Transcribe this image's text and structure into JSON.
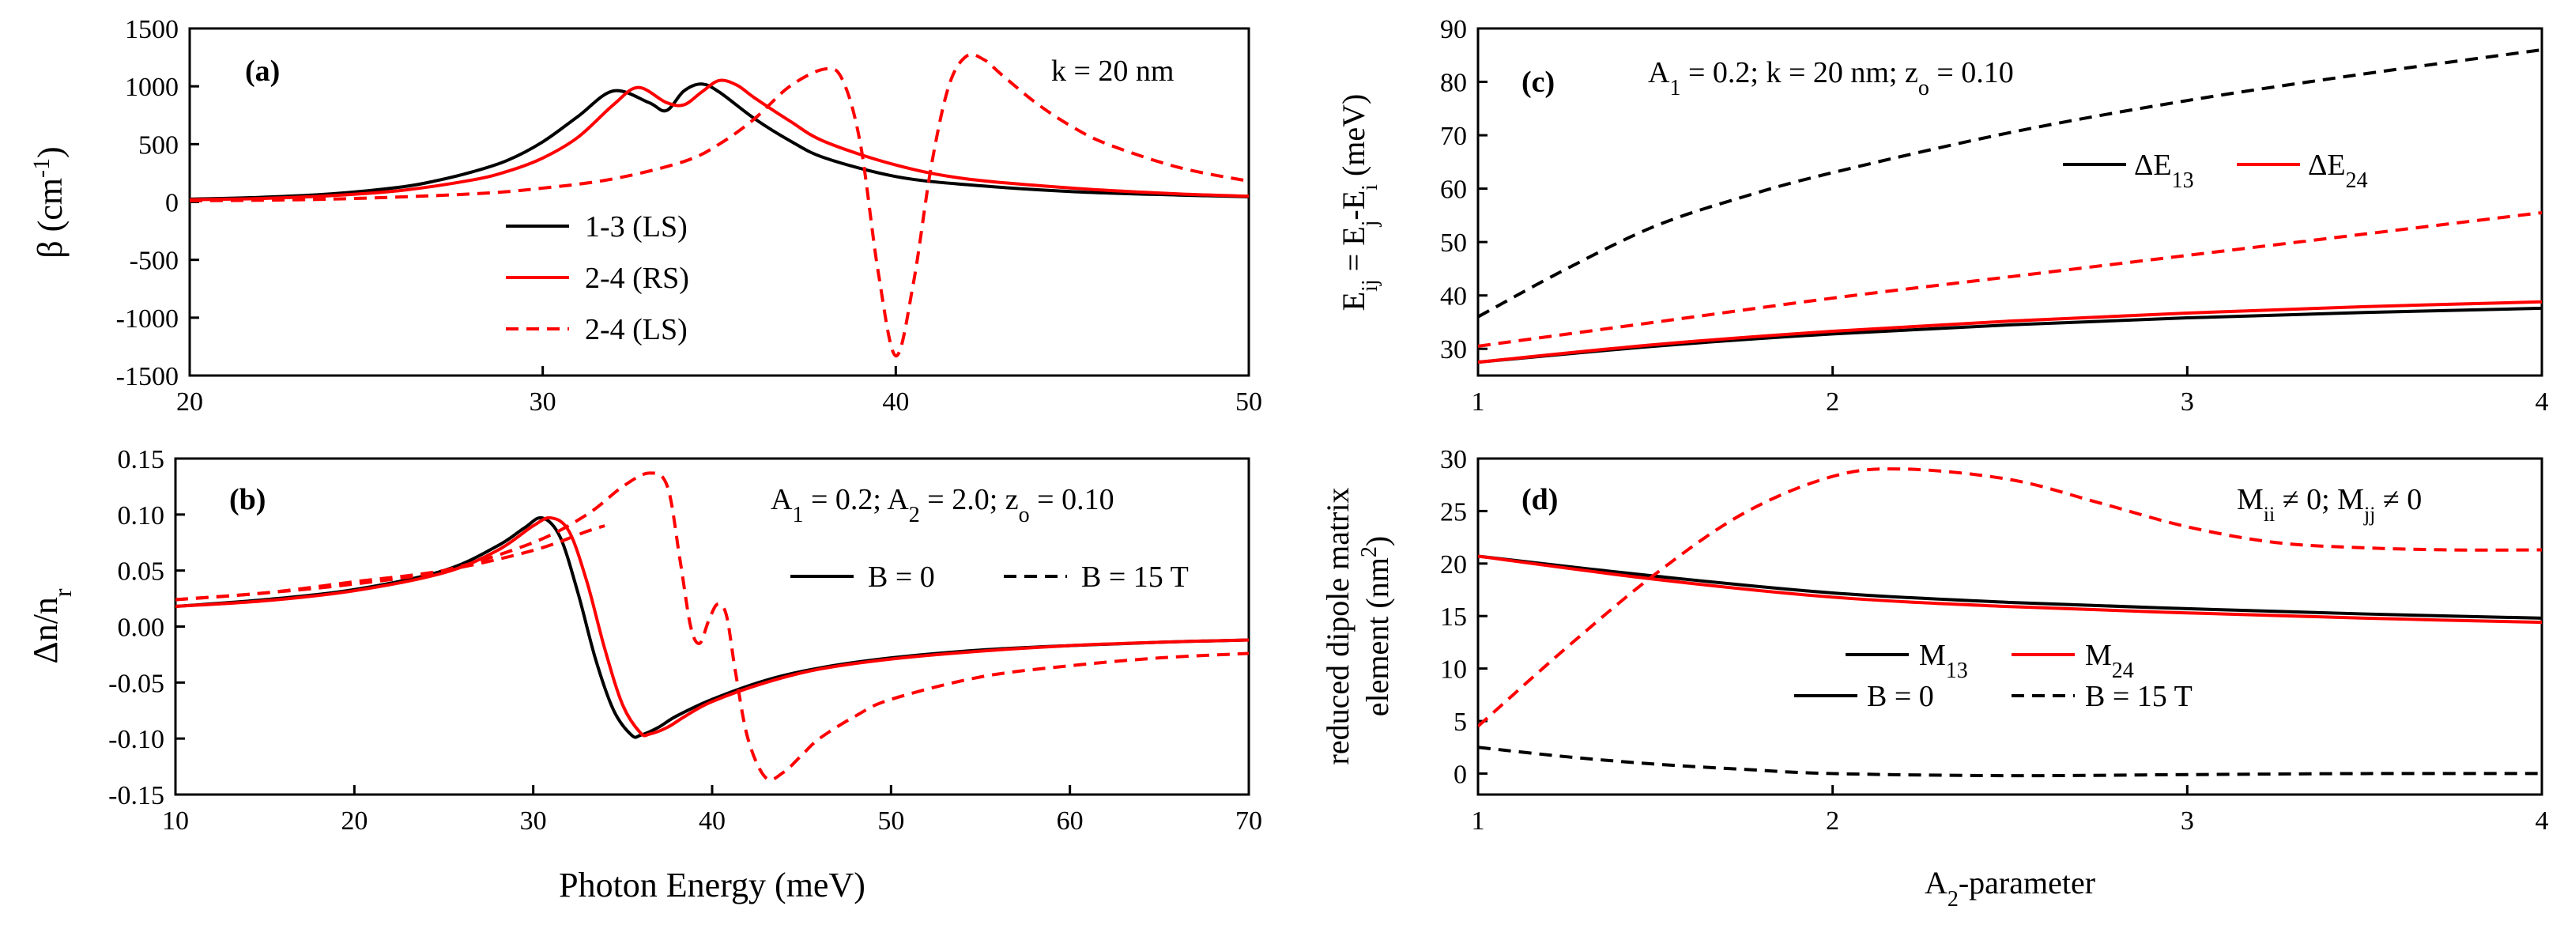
{
  "colors": {
    "black": "#000000",
    "red": "#ff0000",
    "background": "#ffffff"
  },
  "chart_data": [
    {
      "id": "a",
      "type": "line",
      "panel_label": "(a)",
      "annotation": "k = 20 nm",
      "ylabel": "β (cm⁻¹)",
      "xlabel": "",
      "xlim": [
        20,
        50
      ],
      "ylim": [
        -1500,
        1500
      ],
      "x_ticks": [
        20,
        30,
        40,
        50
      ],
      "y_ticks": [
        -1500,
        -1000,
        -500,
        0,
        500,
        1000,
        1500
      ],
      "legend_position": "center-left",
      "series": [
        {
          "name": "1-3 (LS)",
          "color": "#000000",
          "dash": "solid",
          "x": [
            20,
            22,
            24,
            26,
            27,
            28,
            29,
            30,
            31,
            32,
            33,
            33.5,
            34,
            34.5,
            35,
            36,
            37,
            38,
            40,
            42,
            45,
            48,
            50
          ],
          "y": [
            25,
            40,
            70,
            130,
            185,
            260,
            360,
            520,
            740,
            960,
            860,
            790,
            960,
            1020,
            950,
            720,
            530,
            380,
            220,
            150,
            90,
            60,
            45
          ]
        },
        {
          "name": "2-4 (RS)",
          "color": "#ff0000",
          "dash": "solid",
          "x": [
            20,
            22,
            24,
            26,
            28,
            29,
            30,
            31,
            32,
            32.7,
            33.5,
            34,
            34.5,
            35,
            35.5,
            36,
            37,
            38,
            40,
            42,
            45,
            48,
            50
          ],
          "y": [
            20,
            30,
            55,
            100,
            190,
            265,
            380,
            560,
            840,
            990,
            860,
            840,
            950,
            1050,
            1010,
            900,
            700,
            520,
            320,
            200,
            120,
            70,
            50
          ]
        },
        {
          "name": "2-4 (LS)",
          "color": "#ff0000",
          "dash": "dashed",
          "x": [
            20,
            24,
            28,
            30,
            32,
            34,
            35,
            36,
            37,
            38,
            38.5,
            39,
            39.5,
            40,
            40.5,
            41,
            41.5,
            42,
            42.5,
            43,
            44,
            45,
            46,
            48,
            50
          ],
          "y": [
            10,
            25,
            70,
            120,
            200,
            350,
            500,
            720,
            1000,
            1150,
            1050,
            500,
            -600,
            -1330,
            -700,
            300,
            1000,
            1260,
            1230,
            1100,
            850,
            650,
            500,
            300,
            180
          ]
        }
      ]
    },
    {
      "id": "b",
      "type": "line",
      "panel_label": "(b)",
      "annotation": "A1 = 0.2; A2 = 2.0; zo = 0.10",
      "ylabel": "Δn/nr",
      "xlabel": "Photon Energy (meV)",
      "xlim": [
        10,
        70
      ],
      "ylim": [
        -0.15,
        0.15
      ],
      "x_ticks": [
        10,
        20,
        30,
        40,
        50,
        60,
        70
      ],
      "y_ticks": [
        -0.15,
        -0.1,
        -0.05,
        0.0,
        0.05,
        0.1,
        0.15
      ],
      "legend_position": "center-right",
      "legend_entries": [
        "B = 0",
        "B = 15 T"
      ],
      "series": [
        {
          "name": "B = 0 (1-3)",
          "color": "#000000",
          "dash": "solid",
          "x": [
            10,
            15,
            20,
            25,
            28,
            29.5,
            30.5,
            31.5,
            32.5,
            33.5,
            34.5,
            35.5,
            36,
            37,
            38,
            40,
            43,
            46,
            50,
            55,
            60,
            65,
            70
          ],
          "y": [
            0.018,
            0.024,
            0.033,
            0.05,
            0.072,
            0.088,
            0.097,
            0.08,
            0.03,
            -0.03,
            -0.075,
            -0.097,
            -0.097,
            -0.09,
            -0.08,
            -0.065,
            -0.048,
            -0.037,
            -0.028,
            -0.021,
            -0.017,
            -0.014,
            -0.012
          ]
        },
        {
          "name": "B = 0 (2-4)",
          "color": "#ff0000",
          "dash": "solid",
          "x": [
            10,
            15,
            20,
            25,
            28,
            30,
            31,
            32,
            33,
            34,
            35,
            36,
            36.5,
            37.5,
            38.5,
            40,
            43,
            46,
            50,
            55,
            60,
            65,
            70
          ],
          "y": [
            0.018,
            0.023,
            0.032,
            0.048,
            0.068,
            0.09,
            0.097,
            0.085,
            0.04,
            -0.02,
            -0.07,
            -0.095,
            -0.096,
            -0.09,
            -0.08,
            -0.067,
            -0.05,
            -0.038,
            -0.029,
            -0.022,
            -0.017,
            -0.014,
            -0.012
          ]
        },
        {
          "name": "B = 15 T (1-3)",
          "color": "#ff0000",
          "dash": "dashed",
          "x": [
            10,
            15,
            20,
            25,
            30,
            33,
            35,
            36.5,
            37.5,
            38.2,
            38.8,
            39.3,
            39.8,
            40.3,
            40.8,
            41.3,
            42,
            43,
            44,
            45,
            46,
            48,
            50,
            55,
            60,
            65,
            70
          ],
          "y": [
            0.024,
            0.03,
            0.038,
            0.05,
            0.075,
            0.1,
            0.125,
            0.137,
            0.125,
            0.06,
            0.0,
            -0.015,
            0.005,
            0.02,
            0.01,
            -0.04,
            -0.1,
            -0.135,
            -0.13,
            -0.115,
            -0.1,
            -0.08,
            -0.065,
            -0.045,
            -0.035,
            -0.028,
            -0.024
          ]
        },
        {
          "name": "B = 15 T (2-4)",
          "color": "#ff0000",
          "dash": "dashed",
          "x": [
            10,
            15,
            20,
            25,
            30,
            33,
            34
          ],
          "y": [
            0.024,
            0.03,
            0.04,
            0.05,
            0.068,
            0.085,
            0.09
          ]
        }
      ]
    },
    {
      "id": "c",
      "type": "line",
      "panel_label": "(c)",
      "annotation": "A1 = 0.2; k = 20 nm; zo = 0.10",
      "ylabel": "Eij = Ej-Ei (meV)",
      "xlabel": "",
      "xlim": [
        1,
        4
      ],
      "ylim": [
        25,
        90
      ],
      "x_ticks": [
        1,
        2,
        3,
        4
      ],
      "y_ticks": [
        30,
        40,
        50,
        60,
        70,
        80,
        90
      ],
      "legend_position": "center-right",
      "legend_entries": [
        "ΔE13",
        "ΔE24"
      ],
      "series": [
        {
          "name": "ΔE13 (B = 0)",
          "color": "#000000",
          "dash": "solid",
          "x": [
            1,
            1.5,
            2,
            2.5,
            3,
            3.5,
            4
          ],
          "y": [
            27.5,
            30.5,
            32.8,
            34.5,
            35.8,
            36.8,
            37.6
          ]
        },
        {
          "name": "ΔE24 (B = 0)",
          "color": "#ff0000",
          "dash": "solid",
          "x": [
            1,
            1.5,
            2,
            2.5,
            3,
            3.5,
            4
          ],
          "y": [
            27.5,
            30.8,
            33.3,
            35.2,
            36.7,
            37.9,
            38.8
          ]
        },
        {
          "name": "ΔE13 (B = 15 T)",
          "color": "#000000",
          "dash": "dashed",
          "x": [
            1,
            1.25,
            1.5,
            1.75,
            2,
            2.5,
            3,
            3.5,
            4
          ],
          "y": [
            36,
            45,
            53,
            58.5,
            63,
            70.5,
            76.5,
            81.5,
            86
          ]
        },
        {
          "name": "ΔE24 (B = 15 T)",
          "color": "#ff0000",
          "dash": "dashed",
          "x": [
            1,
            1.5,
            2,
            2.5,
            3,
            3.5,
            4
          ],
          "y": [
            30.5,
            35,
            39.5,
            43.5,
            47.5,
            51.5,
            55.5
          ]
        }
      ]
    },
    {
      "id": "d",
      "type": "line",
      "panel_label": "(d)",
      "annotation": "Mii ≠ 0; Mjj ≠ 0",
      "ylabel": "reduced dipole matrix element (nm²)",
      "xlabel": "A2-parameter",
      "xlim": [
        1,
        4
      ],
      "ylim": [
        -2,
        30
      ],
      "x_ticks": [
        1,
        2,
        3,
        4
      ],
      "y_ticks": [
        0,
        5,
        10,
        15,
        20,
        25,
        30
      ],
      "legend_position": "lower-center",
      "legend_entries": [
        "M13",
        "M24",
        "B = 0",
        "B = 15 T"
      ],
      "series": [
        {
          "name": "M13 (B = 0)",
          "color": "#000000",
          "dash": "solid",
          "x": [
            1,
            1.5,
            2,
            2.5,
            3,
            3.5,
            4
          ],
          "y": [
            20.7,
            18.8,
            17.2,
            16.3,
            15.7,
            15.2,
            14.8
          ]
        },
        {
          "name": "M24 (B = 0)",
          "color": "#ff0000",
          "dash": "solid",
          "x": [
            1,
            1.5,
            2,
            2.5,
            3,
            3.5,
            4
          ],
          "y": [
            20.7,
            18.5,
            16.8,
            15.9,
            15.3,
            14.8,
            14.4
          ]
        },
        {
          "name": "M13 (B = 15 T)",
          "color": "#000000",
          "dash": "dashed",
          "x": [
            1,
            1.25,
            1.5,
            1.75,
            2,
            2.5,
            3,
            3.5,
            4
          ],
          "y": [
            2.5,
            1.6,
            0.9,
            0.4,
            0.0,
            -0.2,
            -0.1,
            0.0,
            0.0
          ]
        },
        {
          "name": "M24 (B = 15 T)",
          "color": "#ff0000",
          "dash": "dashed",
          "x": [
            1,
            1.25,
            1.5,
            1.75,
            2,
            2.2,
            2.5,
            2.75,
            3,
            3.25,
            3.5,
            3.75,
            4
          ],
          "y": [
            4.5,
            12,
            19,
            24.8,
            28.3,
            29,
            28,
            25.8,
            23.5,
            22,
            21.5,
            21.3,
            21.3
          ]
        }
      ]
    }
  ]
}
